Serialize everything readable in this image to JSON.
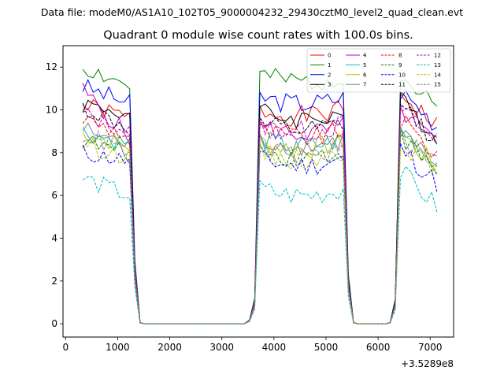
{
  "suptitle": "Data file: modeM0/AS1A10_102T05_9000004232_29430cztM0_level2_quad_clean.evt",
  "chart_data": {
    "type": "line",
    "title": "Quadrant 0 module wise count rates with 100.0s bins.",
    "xlabel": "",
    "ylabel": "",
    "x_offset_label": "+3.5289e8",
    "xlim": [
      -50,
      7450
    ],
    "ylim": [
      -0.62,
      13.0
    ],
    "x_ticks": [
      0,
      1000,
      2000,
      3000,
      4000,
      5000,
      6000,
      7000
    ],
    "x_tick_labels": [
      "0",
      "1000",
      "2000",
      "3000",
      "4000",
      "5000",
      "6000",
      "7000"
    ],
    "y_ticks": [
      0,
      2,
      4,
      6,
      8,
      10,
      12
    ],
    "y_tick_labels": [
      "0",
      "2",
      "4",
      "6",
      "8",
      "10",
      "12"
    ],
    "legend_location": "top-right",
    "segments": [
      {
        "start": 330,
        "end": 1230
      },
      {
        "start": 3730,
        "end": 5330
      },
      {
        "start": 6430,
        "end": 7130
      }
    ],
    "gaps": [
      {
        "x": [
          1330,
          1430,
          1530,
          3230,
          3330,
          3430,
          3530,
          3630
        ],
        "y": [
          2.5,
          0.05,
          0,
          0,
          0,
          0,
          0.15,
          1.0
        ]
      },
      {
        "x": [
          5430,
          5530,
          5630,
          6030,
          6130,
          6230,
          6330
        ],
        "y": [
          2.0,
          0.05,
          0,
          0,
          0,
          0.05,
          1.0
        ]
      }
    ],
    "series": [
      {
        "name": "0",
        "color": "#ff0000",
        "dash": "solid",
        "levels": [
          10.2,
          9.6,
          10.0,
          10.0
        ],
        "seed": 1
      },
      {
        "name": "1",
        "color": "#008000",
        "dash": "solid",
        "levels": [
          12.0,
          11.1,
          11.6,
          10.8
        ],
        "seed": 2
      },
      {
        "name": "2",
        "color": "#0000ff",
        "dash": "solid",
        "levels": [
          11.1,
          10.3,
          10.6,
          10.1
        ],
        "seed": 3
      },
      {
        "name": "3",
        "color": "#000000",
        "dash": "solid",
        "levels": [
          10.3,
          9.8,
          9.9,
          9.6
        ],
        "seed": 4
      },
      {
        "name": "4",
        "color": "#c000c0",
        "dash": "solid",
        "levels": [
          10.9,
          8.7,
          9.2,
          9.2
        ],
        "seed": 5
      },
      {
        "name": "5",
        "color": "#00bfbf",
        "dash": "solid",
        "levels": [
          9.0,
          8.4,
          8.6,
          8.3
        ],
        "seed": 6
      },
      {
        "name": "6",
        "color": "#bfbf00",
        "dash": "solid",
        "levels": [
          8.9,
          8.3,
          8.5,
          8.1
        ],
        "seed": 7
      },
      {
        "name": "7",
        "color": "#808080",
        "dash": "solid",
        "levels": [
          9.1,
          8.3,
          8.6,
          8.2
        ],
        "seed": 8
      },
      {
        "name": "8",
        "color": "#ff0000",
        "dash": "dashed",
        "levels": [
          9.6,
          8.8,
          9.0,
          8.7
        ],
        "seed": 9
      },
      {
        "name": "9",
        "color": "#008000",
        "dash": "dashed",
        "levels": [
          8.6,
          7.9,
          8.1,
          7.9
        ],
        "seed": 10
      },
      {
        "name": "10",
        "color": "#0000ff",
        "dash": "dashed",
        "levels": [
          8.0,
          7.6,
          7.7,
          7.4
        ],
        "seed": 11
      },
      {
        "name": "11",
        "color": "#000000",
        "dash": "dashed",
        "levels": [
          10.1,
          9.1,
          9.3,
          9.4
        ],
        "seed": 12
      },
      {
        "name": "12",
        "color": "#c000c0",
        "dash": "dashed",
        "levels": [
          9.8,
          9.0,
          9.3,
          9.2
        ],
        "seed": 13
      },
      {
        "name": "13",
        "color": "#00bfbf",
        "dash": "dashed",
        "levels": [
          6.8,
          6.0,
          6.3,
          6.3
        ],
        "seed": 14
      },
      {
        "name": "14",
        "color": "#bfbf00",
        "dash": "dashed",
        "levels": [
          8.4,
          7.8,
          8.0,
          7.8
        ],
        "seed": 15
      },
      {
        "name": "15",
        "color": "#808080",
        "dash": "dashed",
        "levels": [
          8.9,
          8.0,
          8.2,
          8.0
        ],
        "seed": 16
      }
    ]
  }
}
